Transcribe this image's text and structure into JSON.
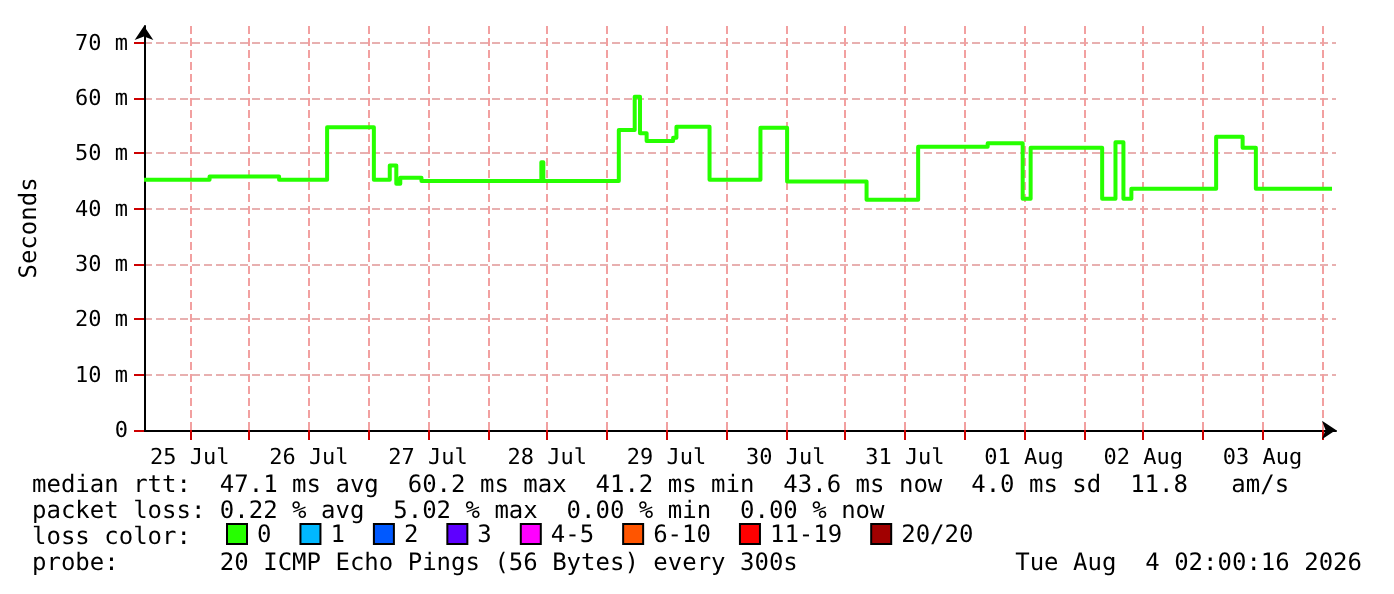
{
  "chart_data": {
    "type": "step",
    "ylabel": "Seconds",
    "legend_title": "loss color:",
    "x": [
      "2026-07-25T02:48",
      "2026-07-25T16:00",
      "2026-07-26T06:00",
      "2026-07-26T15:40",
      "2026-07-27T01:05",
      "2026-07-27T04:17",
      "2026-07-27T05:36",
      "2026-07-27T06:24",
      "2026-07-27T10:40",
      "2026-07-28T10:48",
      "2026-07-28T11:12",
      "2026-07-29T02:24",
      "2026-07-29T05:36",
      "2026-07-29T06:40",
      "2026-07-29T08:00",
      "2026-07-29T13:20",
      "2026-07-29T14:00",
      "2026-07-29T20:40",
      "2026-07-30T06:55",
      "2026-07-30T12:17",
      "2026-07-31T04:17",
      "2026-07-31T14:40",
      "2026-08-01T04:40",
      "2026-08-01T11:43",
      "2026-08-01T13:19",
      "2026-08-02T03:43",
      "2026-08-02T06:24",
      "2026-08-02T08:00",
      "2026-08-02T09:36",
      "2026-08-03T02:40",
      "2026-08-03T08:00",
      "2026-08-03T10:40",
      "2026-08-04T02:00"
    ],
    "series": [
      {
        "name": "0",
        "color": "#26ff00",
        "values": [
          45.2,
          45.8,
          45.2,
          54.7,
          45.2,
          47.8,
          44.5,
          45.6,
          45.0,
          48.4,
          45.0,
          54.2,
          60.2,
          53.6,
          52.2,
          52.8,
          54.8,
          45.2,
          54.6,
          44.9,
          41.6,
          51.2,
          51.8,
          41.8,
          51.0,
          41.8,
          52.0,
          41.8,
          43.6,
          53.0,
          51.0,
          43.6,
          43.6
        ]
      },
      {
        "name": "1",
        "color": "#00b8ff",
        "values": [
          null,
          null,
          null,
          null,
          null,
          null,
          null,
          null,
          null,
          null,
          null,
          null,
          null,
          null,
          null,
          null,
          null,
          null,
          null,
          null,
          null,
          null,
          null,
          null,
          null,
          null,
          null,
          null,
          null,
          null,
          null,
          null,
          null
        ]
      },
      {
        "name": "2",
        "color": "#0059ff",
        "values": [
          null,
          null,
          null,
          null,
          null,
          null,
          null,
          null,
          null,
          null,
          null,
          null,
          null,
          null,
          null,
          null,
          null,
          null,
          null,
          null,
          null,
          null,
          null,
          null,
          null,
          null,
          null,
          null,
          null,
          null,
          null,
          null,
          null
        ]
      },
      {
        "name": "3",
        "color": "#5e00ff",
        "values": [
          null,
          null,
          null,
          null,
          null,
          null,
          null,
          null,
          null,
          null,
          null,
          null,
          null,
          null,
          null,
          null,
          null,
          null,
          null,
          null,
          null,
          null,
          null,
          null,
          null,
          null,
          null,
          null,
          null,
          null,
          null,
          null,
          null
        ]
      },
      {
        "name": "4-5",
        "color": "#ff00ff",
        "values": [
          null,
          null,
          null,
          null,
          null,
          null,
          null,
          null,
          null,
          null,
          null,
          null,
          null,
          null,
          null,
          null,
          null,
          null,
          null,
          null,
          null,
          null,
          null,
          null,
          null,
          null,
          null,
          null,
          null,
          null,
          null,
          null,
          null
        ]
      },
      {
        "name": "6-10",
        "color": "#ff5500",
        "values": [
          null,
          null,
          null,
          null,
          null,
          null,
          null,
          null,
          null,
          null,
          null,
          null,
          null,
          null,
          null,
          null,
          null,
          null,
          null,
          null,
          null,
          null,
          null,
          null,
          null,
          null,
          null,
          null,
          null,
          null,
          null,
          null,
          null
        ]
      },
      {
        "name": "11-19",
        "color": "#ff0000",
        "values": [
          null,
          null,
          null,
          null,
          null,
          null,
          null,
          null,
          null,
          null,
          null,
          null,
          null,
          null,
          null,
          null,
          null,
          null,
          null,
          null,
          null,
          null,
          null,
          null,
          null,
          null,
          null,
          null,
          null,
          null,
          null,
          null,
          null
        ]
      },
      {
        "name": "20/20",
        "color": "#a10000",
        "values": [
          null,
          null,
          null,
          null,
          null,
          null,
          null,
          null,
          null,
          null,
          null,
          null,
          null,
          null,
          null,
          null,
          null,
          null,
          null,
          null,
          null,
          null,
          null,
          null,
          null,
          null,
          null,
          null,
          null,
          null,
          null,
          null,
          null
        ]
      }
    ],
    "xlim": [
      "2026-07-25T02:48",
      "2026-08-04T02:48"
    ],
    "xticks": [
      {
        "value": "2026-07-25T12:00",
        "label": "25 Jul"
      },
      {
        "value": "2026-07-26T00:00",
        "label": null
      },
      {
        "value": "2026-07-26T12:00",
        "label": "26 Jul"
      },
      {
        "value": "2026-07-27T00:00",
        "label": null
      },
      {
        "value": "2026-07-27T12:00",
        "label": "27 Jul"
      },
      {
        "value": "2026-07-28T00:00",
        "label": null
      },
      {
        "value": "2026-07-28T12:00",
        "label": "28 Jul"
      },
      {
        "value": "2026-07-29T00:00",
        "label": null
      },
      {
        "value": "2026-07-29T12:00",
        "label": "29 Jul"
      },
      {
        "value": "2026-07-30T00:00",
        "label": null
      },
      {
        "value": "2026-07-30T12:00",
        "label": "30 Jul"
      },
      {
        "value": "2026-07-31T00:00",
        "label": null
      },
      {
        "value": "2026-07-31T12:00",
        "label": "31 Jul"
      },
      {
        "value": "2026-08-01T00:00",
        "label": null
      },
      {
        "value": "2026-08-01T12:00",
        "label": "01 Aug"
      },
      {
        "value": "2026-08-02T00:00",
        "label": null
      },
      {
        "value": "2026-08-02T12:00",
        "label": "02 Aug"
      },
      {
        "value": "2026-08-03T00:00",
        "label": null
      },
      {
        "value": "2026-08-03T12:00",
        "label": "03 Aug"
      },
      {
        "value": "2026-08-04T00:00",
        "label": null
      }
    ],
    "ylim": [
      0,
      73
    ],
    "yticks": [
      0,
      {
        "value": 10,
        "label": "10 m"
      },
      {
        "value": 20,
        "label": "20 m"
      },
      {
        "value": 30,
        "label": "30 m"
      },
      {
        "value": 40,
        "label": "40 m"
      },
      {
        "value": 50,
        "label": "50 m"
      },
      {
        "value": 60,
        "label": "60 m"
      },
      {
        "value": 70,
        "label": "70 m"
      }
    ],
    "grid": true,
    "legend": "bottom",
    "annotations": [
      "median rtt:  47.1 ms avg  60.2 ms max  41.2 ms min  43.6 ms now  4.0 ms sd  11.8   am/s",
      "packet loss: 0.22 % avg  5.02 % max  0.00 % min  0.00 % now",
      "probe:       20 ICMP Echo Pings (56 Bytes) every 300s",
      "Tue Aug  4 02:00:16 2026"
    ]
  }
}
